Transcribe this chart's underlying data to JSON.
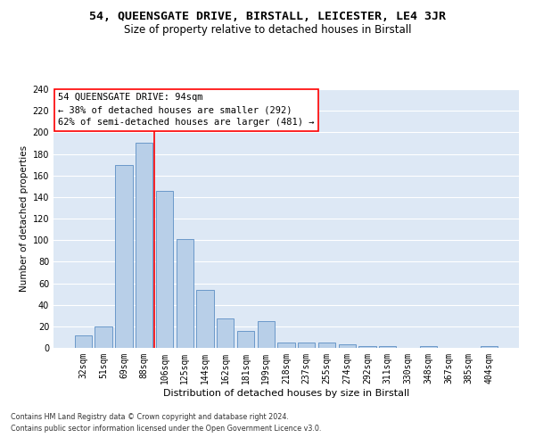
{
  "title1": "54, QUEENSGATE DRIVE, BIRSTALL, LEICESTER, LE4 3JR",
  "title2": "Size of property relative to detached houses in Birstall",
  "xlabel": "Distribution of detached houses by size in Birstall",
  "ylabel": "Number of detached properties",
  "categories": [
    "32sqm",
    "51sqm",
    "69sqm",
    "88sqm",
    "106sqm",
    "125sqm",
    "144sqm",
    "162sqm",
    "181sqm",
    "199sqm",
    "218sqm",
    "237sqm",
    "255sqm",
    "274sqm",
    "292sqm",
    "311sqm",
    "330sqm",
    "348sqm",
    "367sqm",
    "385sqm",
    "404sqm"
  ],
  "values": [
    12,
    20,
    170,
    190,
    146,
    101,
    54,
    27,
    16,
    25,
    5,
    5,
    5,
    3,
    2,
    2,
    0,
    2,
    0,
    0,
    2
  ],
  "bar_color": "#b8cfe8",
  "bar_edge_color": "#5b8ec4",
  "vline_x_index": 3.5,
  "vline_color": "red",
  "annotation_text": "54 QUEENSGATE DRIVE: 94sqm\n← 38% of detached houses are smaller (292)\n62% of semi-detached houses are larger (481) →",
  "annotation_box_color": "white",
  "annotation_box_edge_color": "red",
  "ylim": [
    0,
    240
  ],
  "yticks": [
    0,
    20,
    40,
    60,
    80,
    100,
    120,
    140,
    160,
    180,
    200,
    220,
    240
  ],
  "footer1": "Contains HM Land Registry data © Crown copyright and database right 2024.",
  "footer2": "Contains public sector information licensed under the Open Government Licence v3.0.",
  "bg_color": "#dde8f5",
  "grid_color": "white",
  "title1_fontsize": 9.5,
  "title2_fontsize": 8.5,
  "xlabel_fontsize": 8,
  "ylabel_fontsize": 7.5,
  "tick_fontsize": 7,
  "annotation_fontsize": 7.5,
  "footer_fontsize": 5.8
}
